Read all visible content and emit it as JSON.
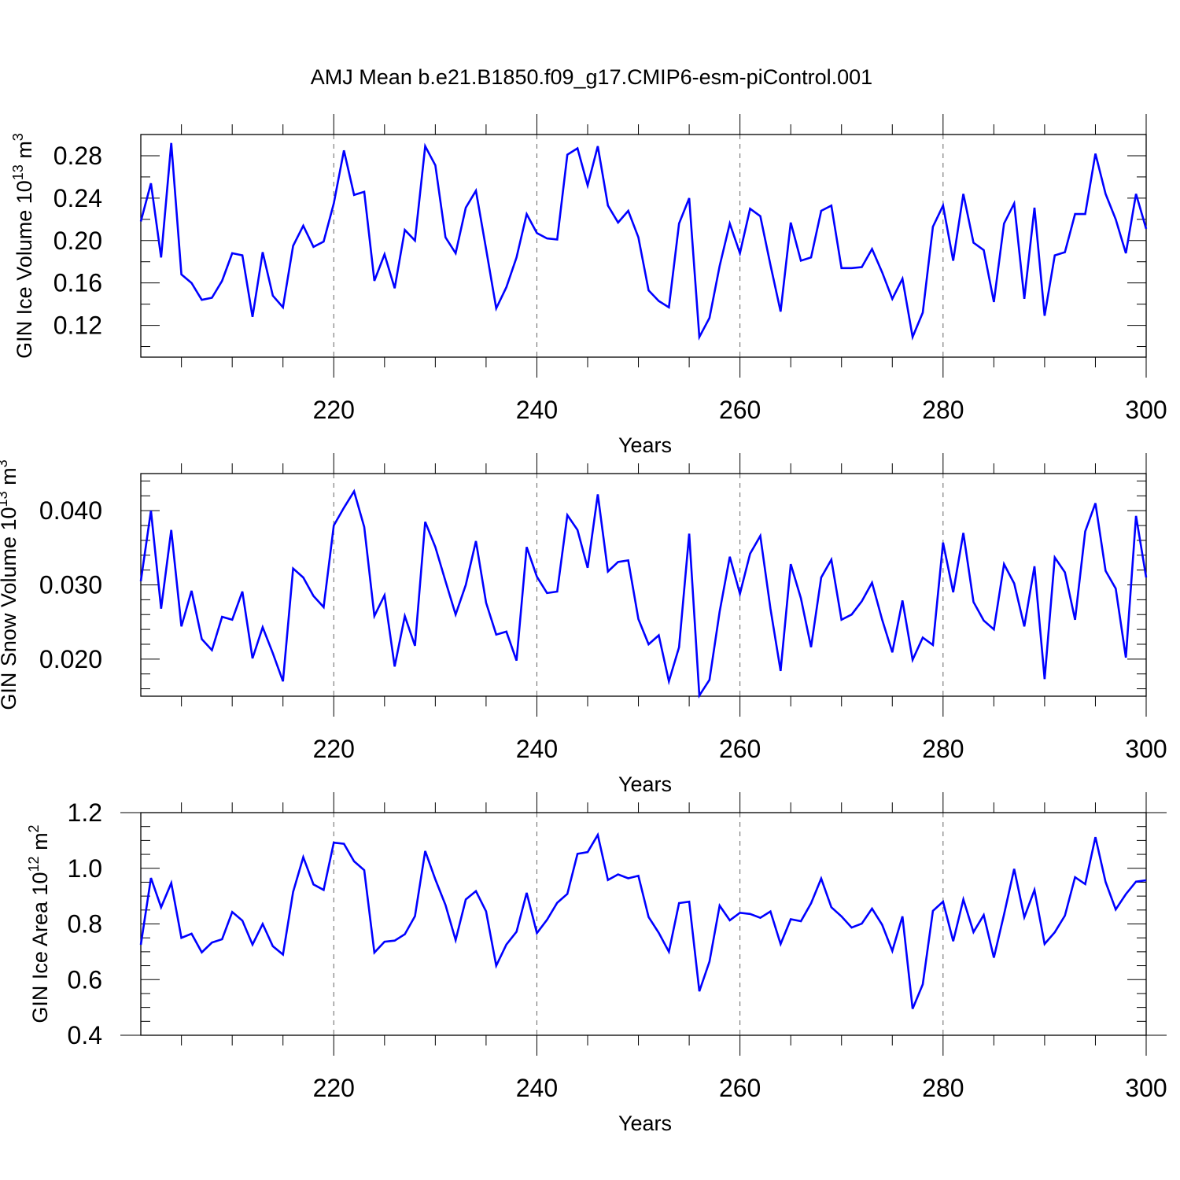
{
  "figure": {
    "title": "AMJ Mean b.e21.B1850.f09_g17.CMIP6-esm-piControl.001"
  },
  "chart_data": [
    {
      "type": "line",
      "panel": "ice-volume",
      "ylabel": {
        "main": "GIN Ice Volume 10",
        "exp": "13",
        "unit": "m",
        "unit_exp": "3"
      },
      "xlabel": "Years",
      "xlim": [
        201,
        300
      ],
      "ylim": [
        0.09,
        0.3
      ],
      "xticks": [
        220,
        240,
        260,
        280,
        300
      ],
      "yticks": [
        0.12,
        0.16,
        0.2,
        0.24,
        0.28
      ],
      "ytick_labels": [
        "0.12",
        "0.16",
        "0.20",
        "0.24",
        "0.28"
      ],
      "yminor": 0.02,
      "grid_x": true,
      "line_color": "#0000ff",
      "x": [
        201,
        202,
        203,
        204,
        205,
        206,
        207,
        208,
        209,
        210,
        211,
        212,
        213,
        214,
        215,
        216,
        217,
        218,
        219,
        220,
        221,
        222,
        223,
        224,
        225,
        226,
        227,
        228,
        229,
        230,
        231,
        232,
        233,
        234,
        235,
        236,
        237,
        238,
        239,
        240,
        241,
        242,
        243,
        244,
        245,
        246,
        247,
        248,
        249,
        250,
        251,
        252,
        253,
        254,
        255,
        256,
        257,
        258,
        259,
        260,
        261,
        262,
        263,
        264,
        265,
        266,
        267,
        268,
        269,
        270,
        271,
        272,
        273,
        274,
        275,
        276,
        277,
        278,
        279,
        280,
        281,
        282,
        283,
        284,
        285,
        286,
        287,
        288,
        289,
        290,
        291,
        292,
        293,
        294,
        295,
        296,
        297,
        298,
        299,
        300
      ],
      "y": [
        0.218,
        0.254,
        0.184,
        0.292,
        0.168,
        0.16,
        0.144,
        0.146,
        0.162,
        0.188,
        0.186,
        0.128,
        0.189,
        0.148,
        0.137,
        0.195,
        0.214,
        0.194,
        0.199,
        0.235,
        0.285,
        0.243,
        0.246,
        0.162,
        0.187,
        0.155,
        0.21,
        0.2,
        0.289,
        0.271,
        0.203,
        0.188,
        0.231,
        0.247,
        0.192,
        0.136,
        0.156,
        0.184,
        0.225,
        0.207,
        0.202,
        0.201,
        0.281,
        0.287,
        0.252,
        0.289,
        0.233,
        0.217,
        0.228,
        0.203,
        0.153,
        0.143,
        0.137,
        0.216,
        0.24,
        0.109,
        0.127,
        0.176,
        0.216,
        0.188,
        0.23,
        0.223,
        0.177,
        0.133,
        0.217,
        0.181,
        0.184,
        0.228,
        0.233,
        0.174,
        0.174,
        0.175,
        0.192,
        0.17,
        0.145,
        0.164,
        0.109,
        0.132,
        0.213,
        0.233,
        0.181,
        0.244,
        0.198,
        0.191,
        0.142,
        0.216,
        0.235,
        0.145,
        0.231,
        0.129,
        0.186,
        0.189,
        0.225,
        0.225,
        0.282,
        0.244,
        0.22,
        0.188,
        0.244,
        0.211
      ]
    },
    {
      "type": "line",
      "panel": "snow-volume",
      "ylabel": {
        "main": "GIN Snow Volume 10",
        "exp": "13",
        "unit": "m",
        "unit_exp": "3"
      },
      "xlabel": "Years",
      "xlim": [
        201,
        300
      ],
      "ylim": [
        0.015,
        0.045
      ],
      "xticks": [
        220,
        240,
        260,
        280,
        300
      ],
      "yticks": [
        0.02,
        0.03,
        0.04
      ],
      "ytick_labels": [
        "0.020",
        "0.030",
        "0.040"
      ],
      "yminor": 0.002,
      "grid_x": true,
      "line_color": "#0000ff",
      "x": [
        201,
        202,
        203,
        204,
        205,
        206,
        207,
        208,
        209,
        210,
        211,
        212,
        213,
        214,
        215,
        216,
        217,
        218,
        219,
        220,
        221,
        222,
        223,
        224,
        225,
        226,
        227,
        228,
        229,
        230,
        231,
        232,
        233,
        234,
        235,
        236,
        237,
        238,
        239,
        240,
        241,
        242,
        243,
        244,
        245,
        246,
        247,
        248,
        249,
        250,
        251,
        252,
        253,
        254,
        255,
        256,
        257,
        258,
        259,
        260,
        261,
        262,
        263,
        264,
        265,
        266,
        267,
        268,
        269,
        270,
        271,
        272,
        273,
        274,
        275,
        276,
        277,
        278,
        279,
        280,
        281,
        282,
        283,
        284,
        285,
        286,
        287,
        288,
        289,
        290,
        291,
        292,
        293,
        294,
        295,
        296,
        297,
        298,
        299,
        300
      ],
      "y": [
        0.0305,
        0.04,
        0.0268,
        0.0374,
        0.0244,
        0.0292,
        0.0227,
        0.0212,
        0.0257,
        0.0253,
        0.0291,
        0.0201,
        0.0243,
        0.0208,
        0.017,
        0.0322,
        0.031,
        0.0285,
        0.027,
        0.038,
        0.0404,
        0.0426,
        0.0378,
        0.0258,
        0.0286,
        0.019,
        0.0258,
        0.0218,
        0.0385,
        0.0351,
        0.0305,
        0.026,
        0.03,
        0.0359,
        0.0276,
        0.0233,
        0.0237,
        0.0198,
        0.0351,
        0.0311,
        0.0289,
        0.0291,
        0.0394,
        0.0374,
        0.0323,
        0.0422,
        0.0318,
        0.0331,
        0.0333,
        0.0254,
        0.022,
        0.0232,
        0.017,
        0.0216,
        0.0369,
        0.0151,
        0.0172,
        0.0264,
        0.0338,
        0.0288,
        0.0342,
        0.0366,
        0.0268,
        0.0184,
        0.0328,
        0.0282,
        0.0216,
        0.031,
        0.0334,
        0.0253,
        0.026,
        0.0278,
        0.0303,
        0.0253,
        0.0209,
        0.0279,
        0.0199,
        0.0229,
        0.0219,
        0.0357,
        0.029,
        0.037,
        0.0277,
        0.0252,
        0.024,
        0.0328,
        0.0302,
        0.0244,
        0.0325,
        0.0173,
        0.0337,
        0.0317,
        0.0253,
        0.0372,
        0.041,
        0.0319,
        0.0295,
        0.0202,
        0.0393,
        0.031
      ]
    },
    {
      "type": "line",
      "panel": "ice-area",
      "ylabel": {
        "main": "GIN Ice Area 10",
        "exp": "12",
        "unit": "m",
        "unit_exp": "2"
      },
      "xlabel": "Years",
      "xlim": [
        201,
        300
      ],
      "ylim": [
        0.4,
        1.2
      ],
      "xticks": [
        220,
        240,
        260,
        280,
        300
      ],
      "yticks": [
        0.4,
        0.6,
        0.8,
        1.0,
        1.2
      ],
      "ytick_labels": [
        "0.4",
        "0.6",
        "0.8",
        "1.0",
        "1.2"
      ],
      "yminor": 0.05,
      "grid_x": true,
      "line_color": "#0000ff",
      "x": [
        201,
        202,
        203,
        204,
        205,
        206,
        207,
        208,
        209,
        210,
        211,
        212,
        213,
        214,
        215,
        216,
        217,
        218,
        219,
        220,
        221,
        222,
        223,
        224,
        225,
        226,
        227,
        228,
        229,
        230,
        231,
        232,
        233,
        234,
        235,
        236,
        237,
        238,
        239,
        240,
        241,
        242,
        243,
        244,
        245,
        246,
        247,
        248,
        249,
        250,
        251,
        252,
        253,
        254,
        255,
        256,
        257,
        258,
        259,
        260,
        261,
        262,
        263,
        264,
        265,
        266,
        267,
        268,
        269,
        270,
        271,
        272,
        273,
        274,
        275,
        276,
        277,
        278,
        279,
        280,
        281,
        282,
        283,
        284,
        285,
        286,
        287,
        288,
        289,
        290,
        291,
        292,
        293,
        294,
        295,
        296,
        297,
        298,
        299,
        300
      ],
      "y": [
        0.725,
        0.965,
        0.86,
        0.947,
        0.75,
        0.765,
        0.698,
        0.733,
        0.745,
        0.843,
        0.812,
        0.726,
        0.8,
        0.72,
        0.69,
        0.915,
        1.04,
        0.942,
        0.922,
        1.092,
        1.088,
        1.025,
        0.993,
        0.697,
        0.736,
        0.74,
        0.763,
        0.828,
        1.062,
        0.96,
        0.868,
        0.742,
        0.888,
        0.918,
        0.845,
        0.65,
        0.726,
        0.772,
        0.912,
        0.767,
        0.815,
        0.876,
        0.908,
        1.052,
        1.058,
        1.12,
        0.958,
        0.978,
        0.964,
        0.973,
        0.825,
        0.768,
        0.7,
        0.875,
        0.88,
        0.558,
        0.665,
        0.866,
        0.813,
        0.84,
        0.836,
        0.822,
        0.845,
        0.728,
        0.817,
        0.81,
        0.874,
        0.963,
        0.86,
        0.827,
        0.787,
        0.801,
        0.855,
        0.797,
        0.703,
        0.827,
        0.495,
        0.583,
        0.847,
        0.88,
        0.738,
        0.888,
        0.771,
        0.832,
        0.679,
        0.834,
        0.998,
        0.824,
        0.922,
        0.728,
        0.77,
        0.83,
        0.968,
        0.943,
        1.112,
        0.951,
        0.852,
        0.907,
        0.952,
        0.957
      ]
    }
  ]
}
